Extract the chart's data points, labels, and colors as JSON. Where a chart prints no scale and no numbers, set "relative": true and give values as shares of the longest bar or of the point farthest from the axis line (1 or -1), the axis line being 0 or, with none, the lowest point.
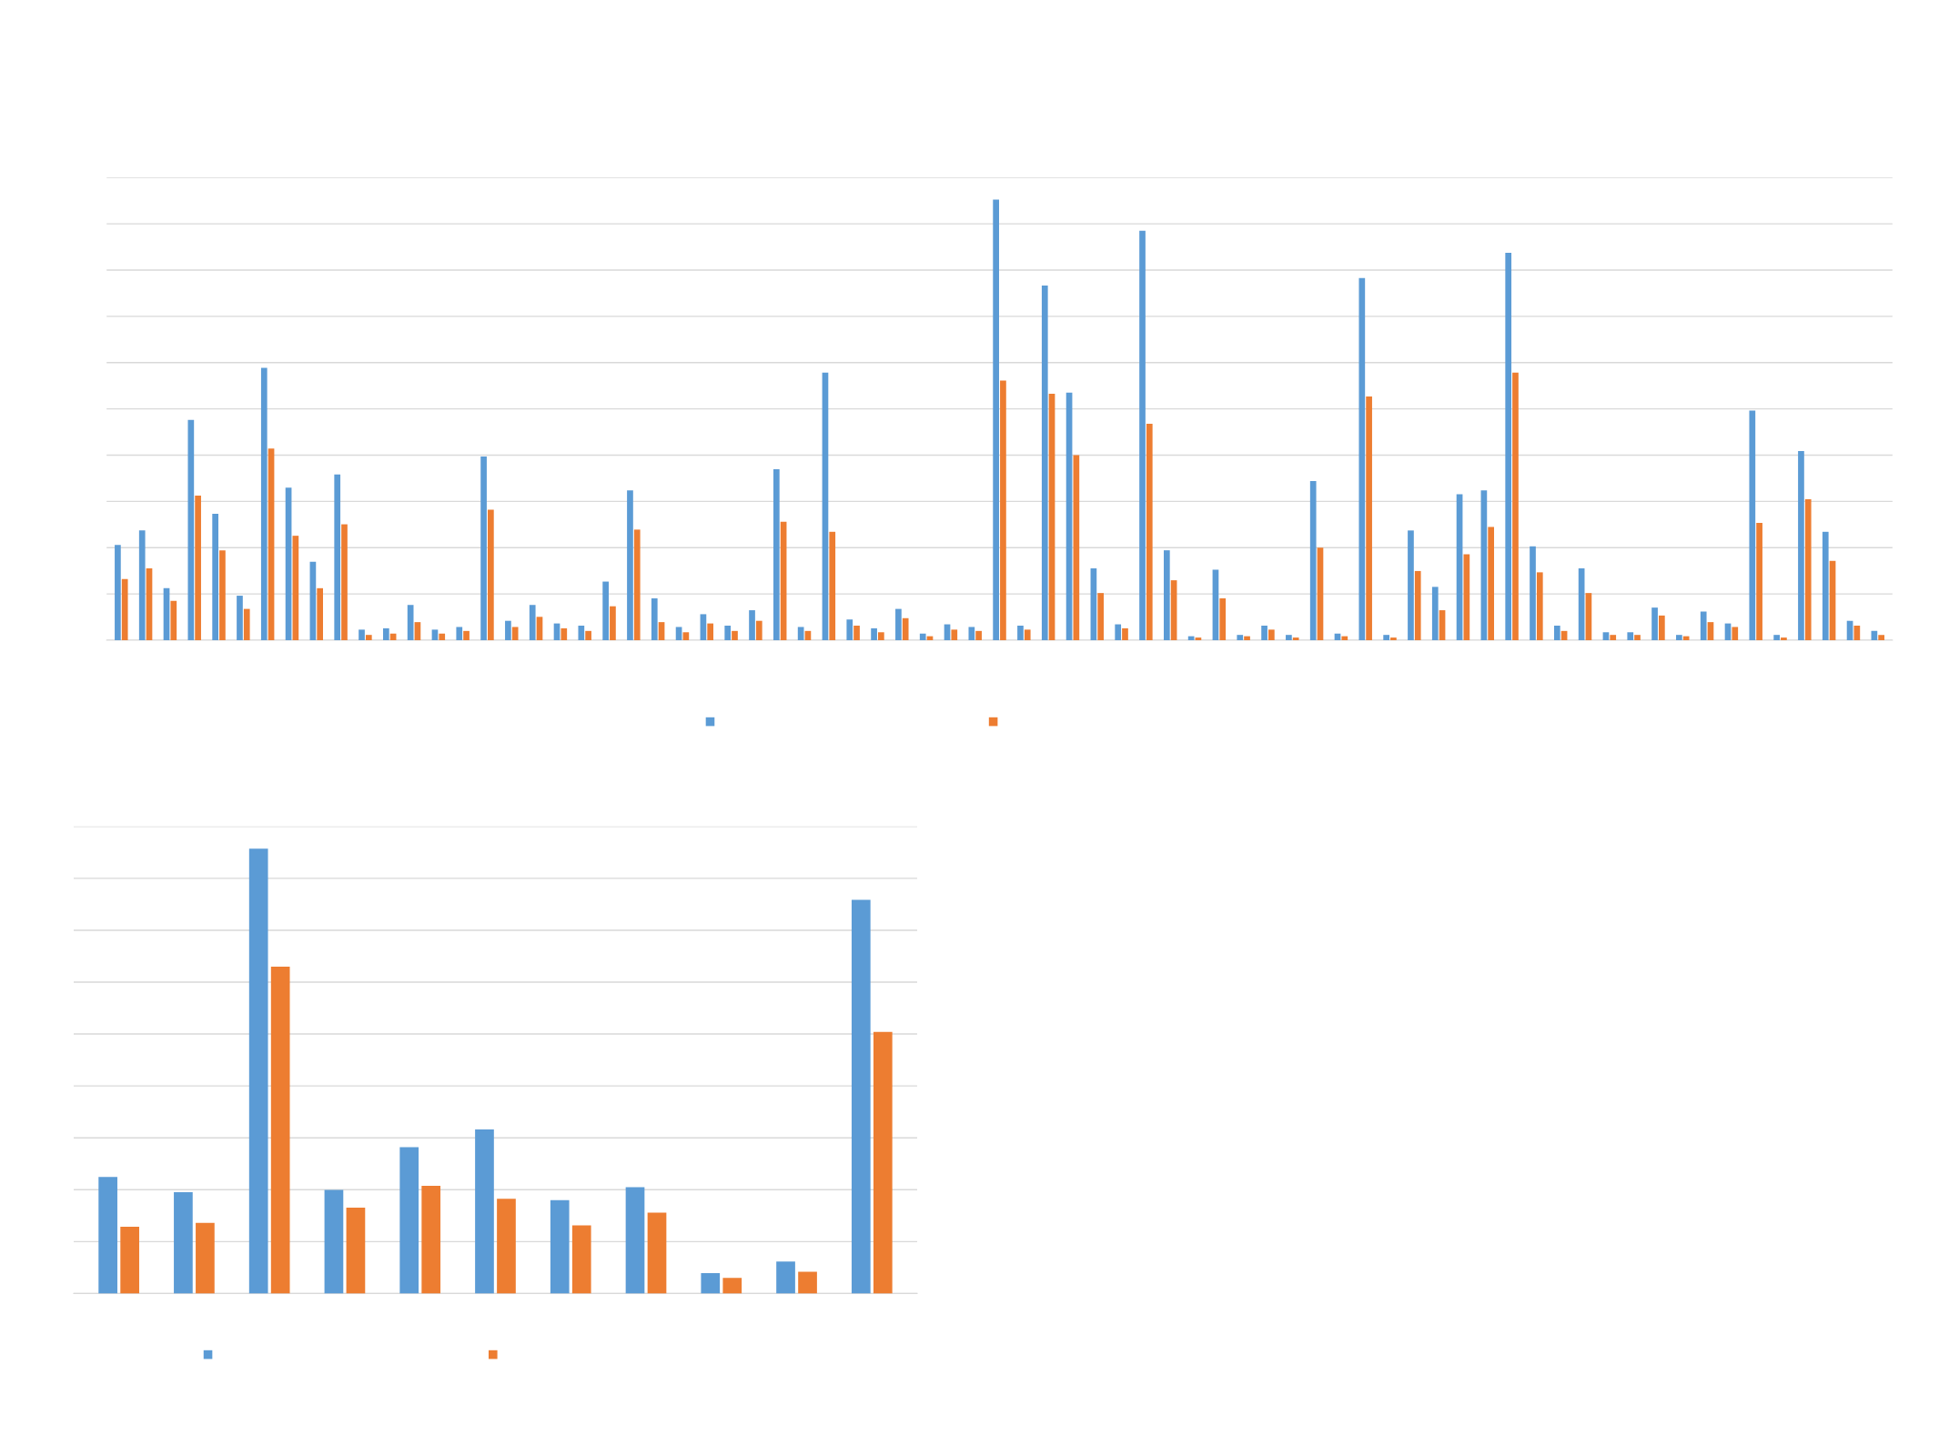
{
  "chart_data": [
    {
      "type": "bar",
      "relative": true,
      "grid": "y",
      "categories": [
        null,
        null,
        null,
        null,
        null,
        null,
        null,
        null,
        null,
        null,
        null,
        null,
        null,
        null,
        null,
        null,
        null,
        null,
        null,
        null,
        null,
        null,
        null,
        null,
        null,
        null,
        null,
        null,
        null,
        null,
        null,
        null,
        null,
        null,
        null,
        null,
        null,
        null,
        null,
        null,
        null,
        null,
        null,
        null,
        null,
        null,
        null,
        null,
        null,
        null,
        null,
        null,
        null,
        null,
        null,
        null,
        null,
        null,
        null,
        null,
        null,
        null,
        null,
        null,
        null,
        null,
        null,
        null,
        null,
        null,
        null,
        null,
        null
      ],
      "series": [
        {
          "color": "#5b9bd5",
          "values": [
            0.216,
            0.249,
            0.118,
            0.5,
            0.287,
            0.101,
            0.618,
            0.346,
            0.178,
            0.376,
            0.024,
            0.027,
            0.08,
            0.024,
            0.03,
            0.417,
            0.044,
            0.08,
            0.038,
            0.033,
            0.133,
            0.34,
            0.095,
            0.03,
            0.059,
            0.033,
            0.068,
            0.388,
            0.03,
            0.607,
            0.047,
            0.027,
            0.071,
            0.015,
            0.036,
            0.03,
            1,
            0.033,
            0.805,
            0.562,
            0.163,
            0.036,
            0.929,
            0.204,
            0.009,
            0.16,
            0.012,
            0.033,
            0.012,
            0.361,
            0.015,
            0.822,
            0.012,
            0.249,
            0.121,
            0.331,
            0.34,
            0.879,
            0.213,
            0.033,
            0.163,
            0.018,
            0.018,
            0.074,
            0.012,
            0.065,
            0.038,
            0.521,
            0.012,
            0.429,
            0.246,
            0.044,
            0.021
          ]
        },
        {
          "color": "#ed7d31",
          "values": [
            0.139,
            0.163,
            0.089,
            0.328,
            0.204,
            0.071,
            0.435,
            0.237,
            0.118,
            0.263,
            0.012,
            0.015,
            0.041,
            0.015,
            0.021,
            0.296,
            0.03,
            0.053,
            0.027,
            0.021,
            0.077,
            0.251,
            0.041,
            0.018,
            0.038,
            0.021,
            0.044,
            0.269,
            0.021,
            0.246,
            0.033,
            0.018,
            0.05,
            0.009,
            0.024,
            0.021,
            0.589,
            0.024,
            0.559,
            0.42,
            0.107,
            0.027,
            0.491,
            0.136,
            0.006,
            0.095,
            0.009,
            0.024,
            0.006,
            0.21,
            0.009,
            0.553,
            0.006,
            0.157,
            0.068,
            0.195,
            0.257,
            0.607,
            0.154,
            0.021,
            0.107,
            0.012,
            0.012,
            0.056,
            0.009,
            0.041,
            0.03,
            0.266,
            0.006,
            0.32,
            0.18,
            0.033,
            0.012
          ]
        }
      ]
    },
    {
      "type": "bar",
      "relative": true,
      "grid": "y",
      "categories": [
        null,
        null,
        null,
        null,
        null,
        null,
        null,
        null,
        null,
        null,
        null
      ],
      "series": [
        {
          "color": "#5b9bd5",
          "values": [
            0.262,
            0.228,
            1,
            0.233,
            0.329,
            0.369,
            0.21,
            0.239,
            0.046,
            0.072,
            0.885
          ]
        },
        {
          "color": "#ed7d31",
          "values": [
            0.15,
            0.159,
            0.735,
            0.193,
            0.242,
            0.213,
            0.153,
            0.182,
            0.035,
            0.049,
            0.588
          ]
        }
      ]
    }
  ]
}
